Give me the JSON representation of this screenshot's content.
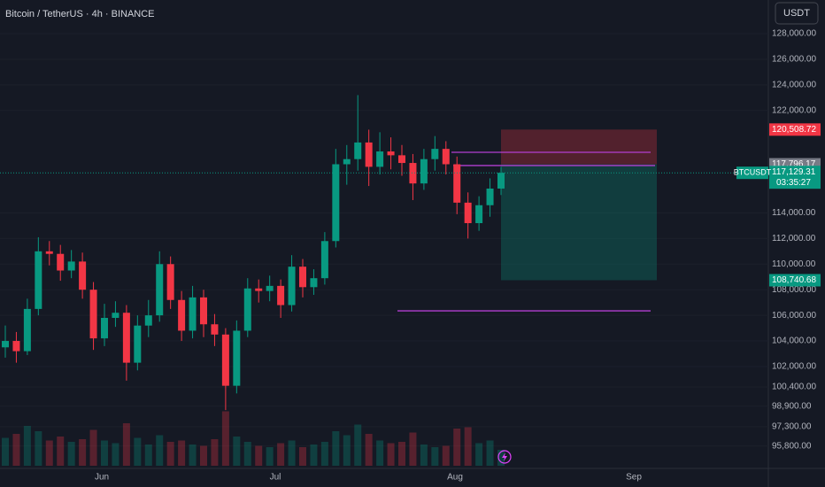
{
  "header": {
    "title": "Bitcoin / TetherUS · 4h · BINANCE",
    "currency": "USDT"
  },
  "chart_data": {
    "type": "candlestick",
    "open": [
      103500,
      104000,
      103200,
      106500,
      111000,
      110800,
      109500,
      110200,
      108000,
      104200,
      105800,
      106200,
      102300,
      105200,
      106000,
      110000,
      107200,
      104800,
      107400,
      105300,
      104500,
      100500,
      104800,
      108100,
      107900,
      108300,
      106800,
      109800,
      108200,
      108900,
      111800,
      117800,
      118200,
      119500,
      117600,
      118800,
      118500,
      117900,
      116300,
      118200,
      119000,
      117800,
      114800,
      113200,
      114600,
      115900
    ],
    "high": [
      105200,
      104700,
      107300,
      112100,
      111800,
      111500,
      111100,
      110900,
      108600,
      106900,
      107100,
      106800,
      106000,
      107200,
      111000,
      110600,
      107900,
      108300,
      108000,
      106100,
      105000,
      105600,
      108900,
      108800,
      109100,
      108800,
      110700,
      110400,
      109600,
      112500,
      119000,
      119300,
      123200,
      120500,
      120300,
      119900,
      119300,
      118600,
      119000,
      120000,
      119600,
      118400,
      115600,
      115300,
      116700,
      117600
    ],
    "low": [
      102700,
      102300,
      102900,
      106000,
      109900,
      108700,
      108900,
      107300,
      103300,
      103600,
      105100,
      100900,
      101700,
      104300,
      105500,
      106500,
      104000,
      104200,
      104300,
      103600,
      98600,
      99900,
      104300,
      107000,
      107100,
      105800,
      106300,
      107400,
      107600,
      108400,
      111300,
      116200,
      117300,
      116100,
      117000,
      117400,
      116900,
      115000,
      115800,
      117300,
      117000,
      113900,
      112000,
      112600,
      113700,
      115400
    ],
    "close": [
      104000,
      103200,
      106500,
      111000,
      110800,
      109500,
      110200,
      108000,
      104200,
      105800,
      106200,
      102300,
      105200,
      106000,
      110000,
      107200,
      104800,
      107400,
      105300,
      104500,
      100500,
      104800,
      108100,
      107900,
      108300,
      106800,
      109800,
      108200,
      108900,
      111800,
      117800,
      118200,
      119500,
      117600,
      118800,
      118500,
      117900,
      116300,
      118200,
      119000,
      117800,
      114800,
      113200,
      114600,
      115900,
      117129.31
    ],
    "volume": [
      2.1,
      2.4,
      3.0,
      2.6,
      1.9,
      2.2,
      1.8,
      2.0,
      2.7,
      1.9,
      1.7,
      3.2,
      2.1,
      1.6,
      2.3,
      1.8,
      1.9,
      1.6,
      1.5,
      2.0,
      4.1,
      2.2,
      1.8,
      1.5,
      1.4,
      1.7,
      1.9,
      1.4,
      1.6,
      1.8,
      2.6,
      2.3,
      3.1,
      2.4,
      1.9,
      1.7,
      1.8,
      2.5,
      1.6,
      1.4,
      1.5,
      2.8,
      2.9,
      1.7,
      1.9,
      1.2
    ],
    "up_color": "#089981",
    "down_color": "#f23645",
    "ylim": [
      93975,
      130628
    ],
    "yticks": [
      {
        "value": 128000,
        "label": "128,000.00"
      },
      {
        "value": 126000,
        "label": "126,000.00"
      },
      {
        "value": 124000,
        "label": "124,000.00"
      },
      {
        "value": 122000,
        "label": "122,000.00"
      },
      {
        "value": 114000,
        "label": "114,000.00"
      },
      {
        "value": 112000,
        "label": "112,000.00"
      },
      {
        "value": 110000,
        "label": "110,000.00"
      },
      {
        "value": 108000,
        "label": "108,000.00"
      },
      {
        "value": 106000,
        "label": "106,000.00"
      },
      {
        "value": 104000,
        "label": "104,000.00"
      },
      {
        "value": 102000,
        "label": "102,000.00"
      },
      {
        "value": 100400,
        "label": "100,400.00"
      },
      {
        "value": 98900,
        "label": "98,900.00"
      },
      {
        "value": 97300,
        "label": "97,300.00"
      },
      {
        "value": 95800,
        "label": "95,800.00"
      }
    ],
    "xtick_labels": [
      "Jun",
      "Jul",
      "Aug",
      "Sep"
    ],
    "levels": [
      {
        "value": 118733,
        "color": "#b23fd0"
      },
      {
        "value": 117700,
        "color": "#b23fd0"
      },
      {
        "value": 106350,
        "color": "#b23fd0"
      }
    ],
    "position": {
      "stop": {
        "value": 120508.72,
        "label": "120,508.72"
      },
      "entry": {
        "value": 117796.17,
        "label": "117,796.17"
      },
      "target": {
        "value": 108740.68,
        "label": "108,740.68"
      }
    },
    "last_price": {
      "value": 117129.31,
      "label": "117,129.31",
      "symbol": "BTCUSDT",
      "countdown": "03:35:27"
    }
  }
}
